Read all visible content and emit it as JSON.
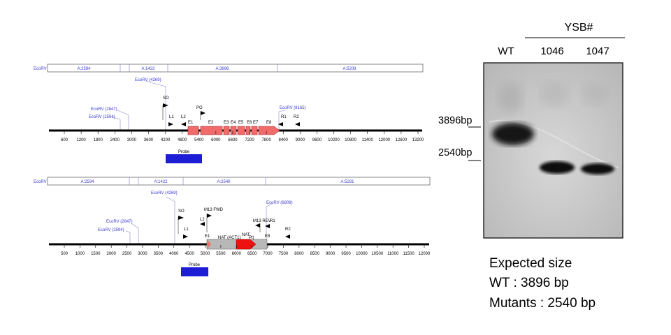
{
  "maps": [
    {
      "id": "wt",
      "ecorv_label": "EcoRV",
      "fragments": [
        "A:2594",
        "A:1422",
        "A:3896",
        "A:5208"
      ],
      "sites": [
        "EcoRV (4269)",
        "EcoRV (2847)",
        "EcoRV (2594)",
        "EcoRV (8165)"
      ],
      "primers": [
        "SO",
        "L1",
        "L2",
        "PO",
        "R1",
        "R2"
      ],
      "exons": [
        "E1",
        "E2",
        "E3",
        "E4",
        "E5",
        "E6",
        "E7",
        "E8"
      ],
      "ticks": [
        "600",
        "1200",
        "1800",
        "2400",
        "3000",
        "3600",
        "4200",
        "4800",
        "5400",
        "6000",
        "6600",
        "7200",
        "7800",
        "8400",
        "9000",
        "9600",
        "10200",
        "10800",
        "11400",
        "12000",
        "12600",
        "13200"
      ],
      "probe_label": "Probe",
      "colors": {
        "gene": "#f26b6b",
        "probe": "#1d1dd6"
      }
    },
    {
      "id": "mutant",
      "ecorv_label": "EcoRV",
      "fragments": [
        "A:2594",
        "A:1422",
        "A:2540",
        "A:5281"
      ],
      "sites": [
        "EcoRV (4269)",
        "EcoRV (2847)",
        "EcoRV (2594)",
        "EcoRV (6809)"
      ],
      "primers": [
        "SO",
        "L1",
        "L2",
        "M13 FWD",
        "M13 REV",
        "R1",
        "R2"
      ],
      "exons": [
        "E1",
        "E8"
      ],
      "cassette": {
        "label": "NAT (ACT1)",
        "suffix": "Pt)",
        "nat": "NAT"
      },
      "ticks": [
        "500",
        "1000",
        "1500",
        "2000",
        "2500",
        "3000",
        "3500",
        "4000",
        "4500",
        "5000",
        "5500",
        "6000",
        "6500",
        "7000",
        "7500",
        "8000",
        "8500",
        "9000",
        "9500",
        "10000",
        "10500",
        "11000",
        "11500",
        "12000"
      ],
      "probe_label": "Probe",
      "colors": {
        "cassette": "#b8b8b8",
        "nat": "#ee1111",
        "probe": "#1d1dd6"
      }
    }
  ],
  "gel": {
    "group_label": "YSB#",
    "lanes": [
      "WT",
      "1046",
      "1047"
    ],
    "size_markers": [
      "3896bp",
      "2540bp"
    ]
  },
  "expected": {
    "heading": "Expected size",
    "wt_line": "WT : 3896 bp",
    "mutant_line": "Mutants : 2540 bp"
  }
}
